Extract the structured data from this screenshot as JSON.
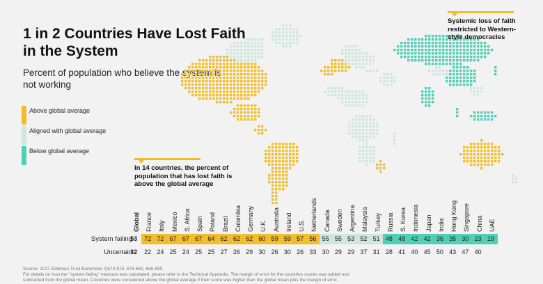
{
  "title": "1 in 2 Countries Have Lost Faith in the System",
  "subtitle": "Percent of population who believe the system is not working",
  "legend": [
    {
      "label": "Above global average",
      "color": "#f2bd2b"
    },
    {
      "label": "Aligned with global average",
      "color": "#cfe6de"
    },
    {
      "label": "Below global average",
      "color": "#4fcfb5"
    }
  ],
  "callouts": {
    "east": "Systemic loss of faith restricted to Western-style democracies",
    "middle": "In 14 countries, the percent of population that has lost faith is above the global average"
  },
  "chart_data": {
    "type": "table",
    "global_label": "Global",
    "countries": [
      "France",
      "Italy",
      "Mexico",
      "S. Africa",
      "Spain",
      "Poland",
      "Brazil",
      "Colombia",
      "Germany",
      "U.K.",
      "Australia",
      "Ireland",
      "U.S.",
      "Netherlands",
      "Canada",
      "Sweden",
      "Argentina",
      "Malaysia",
      "Turkey",
      "Russia",
      "S. Korea",
      "Indonesia",
      "Japan",
      "India",
      "Hong Kong",
      "Singapore",
      "China",
      "UAE"
    ],
    "rows": [
      {
        "label": "System failing",
        "global": 53,
        "values": [
          72,
          72,
          67,
          67,
          67,
          64,
          62,
          62,
          62,
          60,
          59,
          59,
          57,
          56,
          55,
          55,
          53,
          52,
          51,
          48,
          48,
          42,
          42,
          36,
          35,
          30,
          23,
          19
        ]
      },
      {
        "label": "Uncertain",
        "global": 32,
        "values": [
          22,
          24,
          25,
          24,
          25,
          25,
          27,
          26,
          29,
          30,
          26,
          30,
          26,
          33,
          30,
          29,
          29,
          37,
          31,
          28,
          41,
          40,
          45,
          50,
          43,
          47,
          40,
          null
        ]
      }
    ],
    "classification": [
      "above",
      "above",
      "above",
      "above",
      "above",
      "above",
      "above",
      "above",
      "above",
      "above",
      "above",
      "above",
      "above",
      "above",
      "aligned",
      "aligned",
      "aligned",
      "aligned",
      "aligned",
      "below",
      "below",
      "below",
      "below",
      "below",
      "below",
      "below",
      "below",
      "below"
    ],
    "colors": {
      "above": "#f2bd2b",
      "aligned": "#cfe6de",
      "below": "#4fcfb5",
      "map_other": "#cfe6de"
    }
  },
  "footnote": {
    "line1": "Source: 2017 Edelman Trust Barometer Q672-675, 678-680, 688-690.",
    "line2": "For details on how the \"system failing\" measure was calculated, please refer to the Technical Appendix. The margin of error for the countries scores was added and",
    "line3": "subtracted from the global mean. Countries were considered above the global average if their score was higher than the global mean plus the margin of error."
  }
}
